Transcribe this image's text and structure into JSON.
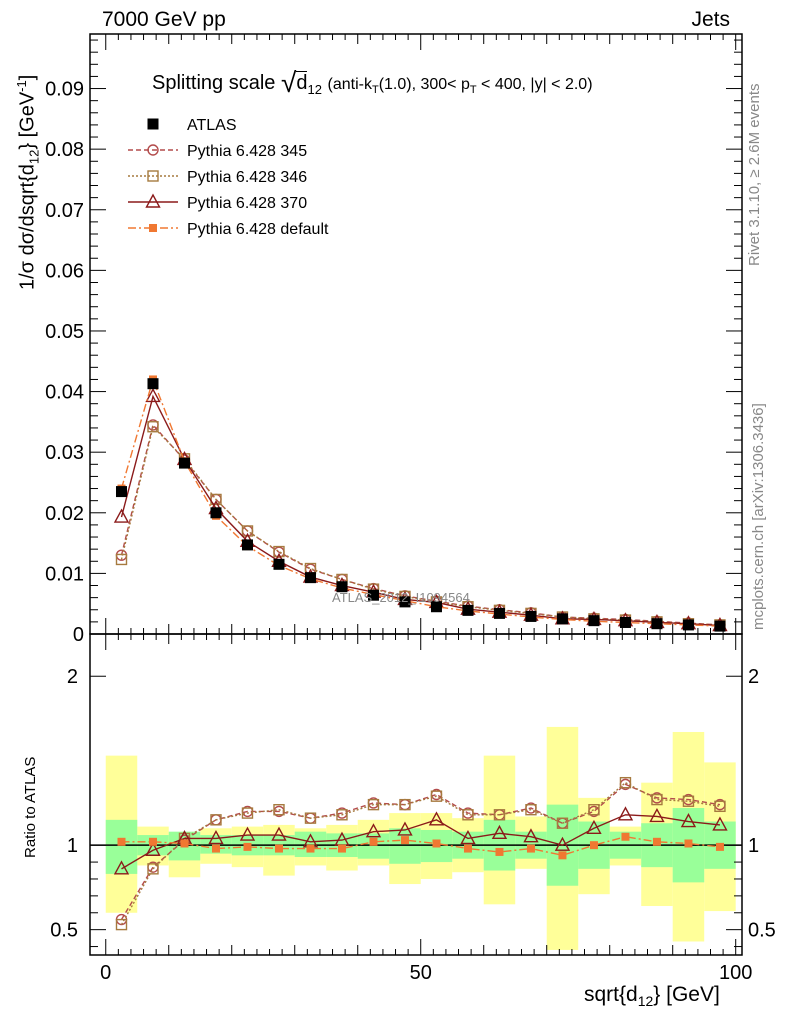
{
  "header": {
    "left": "7000 GeV pp",
    "right": "Jets"
  },
  "side_labels": {
    "rivet": "Rivet 3.1.10, ≥ 2.6M events",
    "mcplots": "mcplots.cern.ch [arXiv:1306.3436]"
  },
  "watermark": "ATLAS_2012_I1094564",
  "chart_data": [
    {
      "type": "line",
      "title": "Splitting scale",
      "title_symbol": "d",
      "title_sub": "12",
      "title_cuts": "(anti-k",
      "title_cuts_sub": "T",
      "title_cuts_2": "(1.0), 300< p",
      "title_cuts_sub2": "T",
      "title_cuts_3": " < 400, |y| < 2.0)",
      "ylabel": "1/σ dσ/dsqrt{d",
      "ylabel_sub": "12",
      "ylabel_end": "} [GeV",
      "ylabel_sup": "-1",
      "ylabel_close": "]",
      "xlim": [
        -2.5,
        101
      ],
      "ylim": [
        0,
        0.099
      ],
      "yticks": [
        0,
        0.01,
        0.02,
        0.03,
        0.04,
        0.05,
        0.06,
        0.07,
        0.08,
        0.09
      ],
      "ytick_labels": [
        "0",
        "0.01",
        "0.02",
        "0.03",
        "0.04",
        "0.05",
        "0.06",
        "0.07",
        "0.08",
        "0.09"
      ],
      "x": [
        2.5,
        7.5,
        12.5,
        17.5,
        22.5,
        27.5,
        32.5,
        37.5,
        42.5,
        47.5,
        52.5,
        57.5,
        62.5,
        67.5,
        72.5,
        77.5,
        82.5,
        87.5,
        92.5,
        97.5
      ],
      "legend_position": "top-left",
      "series": [
        {
          "name": "ATLAS",
          "color": "#000000",
          "marker": "filled-square",
          "values": [
            0.0235,
            0.0413,
            0.0282,
            0.02,
            0.0147,
            0.0115,
            0.0093,
            0.0078,
            0.0064,
            0.0053,
            0.0045,
            0.0039,
            0.0034,
            0.0029,
            0.0025,
            0.0022,
            0.0019,
            0.0017,
            0.0015,
            0.0013
          ]
        },
        {
          "name": "Pythia 6.428 345",
          "color": "#b34c4c",
          "marker": "open-circle",
          "dash": "5,3",
          "values": [
            0.013,
            0.0345,
            0.0287,
            0.0222,
            0.017,
            0.0135,
            0.0107,
            0.009,
            0.0075,
            0.0063,
            0.0054,
            0.0046,
            0.004,
            0.0035,
            0.0028,
            0.0026,
            0.0024,
            0.0021,
            0.0018,
            0.0015
          ]
        },
        {
          "name": "Pythia 6.428 346",
          "color": "#a67a3f",
          "marker": "open-square",
          "dash": "2,2",
          "values": [
            0.0123,
            0.0342,
            0.0289,
            0.0222,
            0.017,
            0.0136,
            0.0108,
            0.009,
            0.0074,
            0.0062,
            0.0053,
            0.0045,
            0.0039,
            0.0034,
            0.0028,
            0.0025,
            0.0023,
            0.002,
            0.0017,
            0.0015
          ]
        },
        {
          "name": "Pythia 6.428 370",
          "color": "#8b1a1a",
          "marker": "open-triangle",
          "dash": "",
          "values": [
            0.0193,
            0.0392,
            0.0288,
            0.0207,
            0.0153,
            0.012,
            0.0094,
            0.008,
            0.0069,
            0.0057,
            0.0052,
            0.0041,
            0.0036,
            0.0031,
            0.0025,
            0.0024,
            0.0022,
            0.0019,
            0.0017,
            0.0014
          ]
        },
        {
          "name": "Pythia 6.428 default",
          "color": "#f07832",
          "marker": "filled-small-square",
          "dash": "8,3,2,3",
          "values": [
            0.024,
            0.042,
            0.0285,
            0.0195,
            0.0145,
            0.0113,
            0.0091,
            0.0076,
            0.0065,
            0.0055,
            0.0045,
            0.0038,
            0.0033,
            0.0028,
            0.0024,
            0.0021,
            0.0019,
            0.0017,
            0.0015,
            0.0013
          ]
        }
      ]
    },
    {
      "type": "line",
      "title": "",
      "ylabel": "Ratio to ATLAS",
      "xlabel": "sqrt{d",
      "xlabel_sub": "12",
      "xlabel_end": "} [GeV]",
      "xlim": [
        -2.5,
        101
      ],
      "ylim": [
        0.35,
        2.25
      ],
      "yticks": [
        0.5,
        1,
        2
      ],
      "ytick_labels": [
        "0.5",
        "1",
        "2"
      ],
      "xticks": [
        0,
        50,
        100
      ],
      "xtick_labels": [
        "0",
        "50",
        "100"
      ],
      "x_edges": [
        0,
        5,
        10,
        15,
        20,
        25,
        30,
        35,
        40,
        45,
        50,
        55,
        60,
        65,
        70,
        75,
        80,
        85,
        90,
        95,
        100
      ],
      "band_inner": [
        [
          0.83,
          1.15
        ],
        [
          0.94,
          1.06
        ],
        [
          0.91,
          1.08
        ],
        [
          0.95,
          1.06
        ],
        [
          0.94,
          1.06
        ],
        [
          0.94,
          1.06
        ],
        [
          0.93,
          1.08
        ],
        [
          0.93,
          1.07
        ],
        [
          0.92,
          1.07
        ],
        [
          0.89,
          1.1
        ],
        [
          0.9,
          1.09
        ],
        [
          0.92,
          1.08
        ],
        [
          0.85,
          1.15
        ],
        [
          0.92,
          1.08
        ],
        [
          0.76,
          1.24
        ],
        [
          0.86,
          1.14
        ],
        [
          0.92,
          1.08
        ],
        [
          0.87,
          1.13
        ],
        [
          0.78,
          1.22
        ],
        [
          0.86,
          1.14
        ]
      ],
      "band_outer": [
        [
          0.6,
          1.53
        ],
        [
          0.88,
          1.11
        ],
        [
          0.81,
          1.07
        ],
        [
          0.89,
          1.1
        ],
        [
          0.87,
          1.11
        ],
        [
          0.82,
          1.12
        ],
        [
          0.88,
          1.1
        ],
        [
          0.85,
          1.12
        ],
        [
          0.88,
          1.15
        ],
        [
          0.77,
          1.19
        ],
        [
          0.8,
          1.19
        ],
        [
          0.84,
          1.16
        ],
        [
          0.65,
          1.53
        ],
        [
          0.86,
          1.17
        ],
        [
          0.38,
          1.7
        ],
        [
          0.71,
          1.28
        ],
        [
          0.88,
          1.11
        ],
        [
          0.64,
          1.37
        ],
        [
          0.43,
          1.67
        ],
        [
          0.61,
          1.49
        ]
      ],
      "x": [
        2.5,
        7.5,
        12.5,
        17.5,
        22.5,
        27.5,
        32.5,
        37.5,
        42.5,
        47.5,
        52.5,
        57.5,
        62.5,
        67.5,
        72.5,
        77.5,
        82.5,
        87.5,
        92.5,
        97.5
      ],
      "reference_line": 1,
      "series": [
        {
          "name": "Pythia 6.428 345",
          "color": "#b34c4c",
          "marker": "open-circle",
          "dash": "5,3",
          "values": [
            0.56,
            0.87,
            1.03,
            1.15,
            1.2,
            1.2,
            1.16,
            1.19,
            1.25,
            1.24,
            1.3,
            1.19,
            1.18,
            1.22,
            1.13,
            1.2,
            1.36,
            1.28,
            1.27,
            1.24
          ]
        },
        {
          "name": "Pythia 6.428 346",
          "color": "#a67a3f",
          "marker": "open-square",
          "dash": "2,2",
          "values": [
            0.53,
            0.86,
            1.04,
            1.15,
            1.19,
            1.21,
            1.16,
            1.18,
            1.24,
            1.24,
            1.29,
            1.18,
            1.18,
            1.21,
            1.13,
            1.21,
            1.37,
            1.27,
            1.26,
            1.23
          ]
        },
        {
          "name": "Pythia 6.428 370",
          "color": "#8b1a1a",
          "marker": "open-triangle",
          "dash": "",
          "values": [
            0.86,
            0.97,
            1.04,
            1.04,
            1.06,
            1.06,
            1.02,
            1.03,
            1.08,
            1.09,
            1.15,
            1.04,
            1.07,
            1.05,
            1.0,
            1.1,
            1.18,
            1.17,
            1.14,
            1.12
          ]
        },
        {
          "name": "Pythia 6.428 default",
          "color": "#f07832",
          "marker": "filled-small-square",
          "dash": "8,3,2,3",
          "values": [
            1.02,
            1.02,
            1.01,
            0.98,
            0.99,
            0.98,
            0.98,
            0.98,
            1.02,
            1.03,
            1.01,
            0.98,
            0.96,
            0.98,
            0.94,
            1.0,
            1.05,
            1.02,
            1.01,
            0.99
          ]
        }
      ]
    }
  ]
}
